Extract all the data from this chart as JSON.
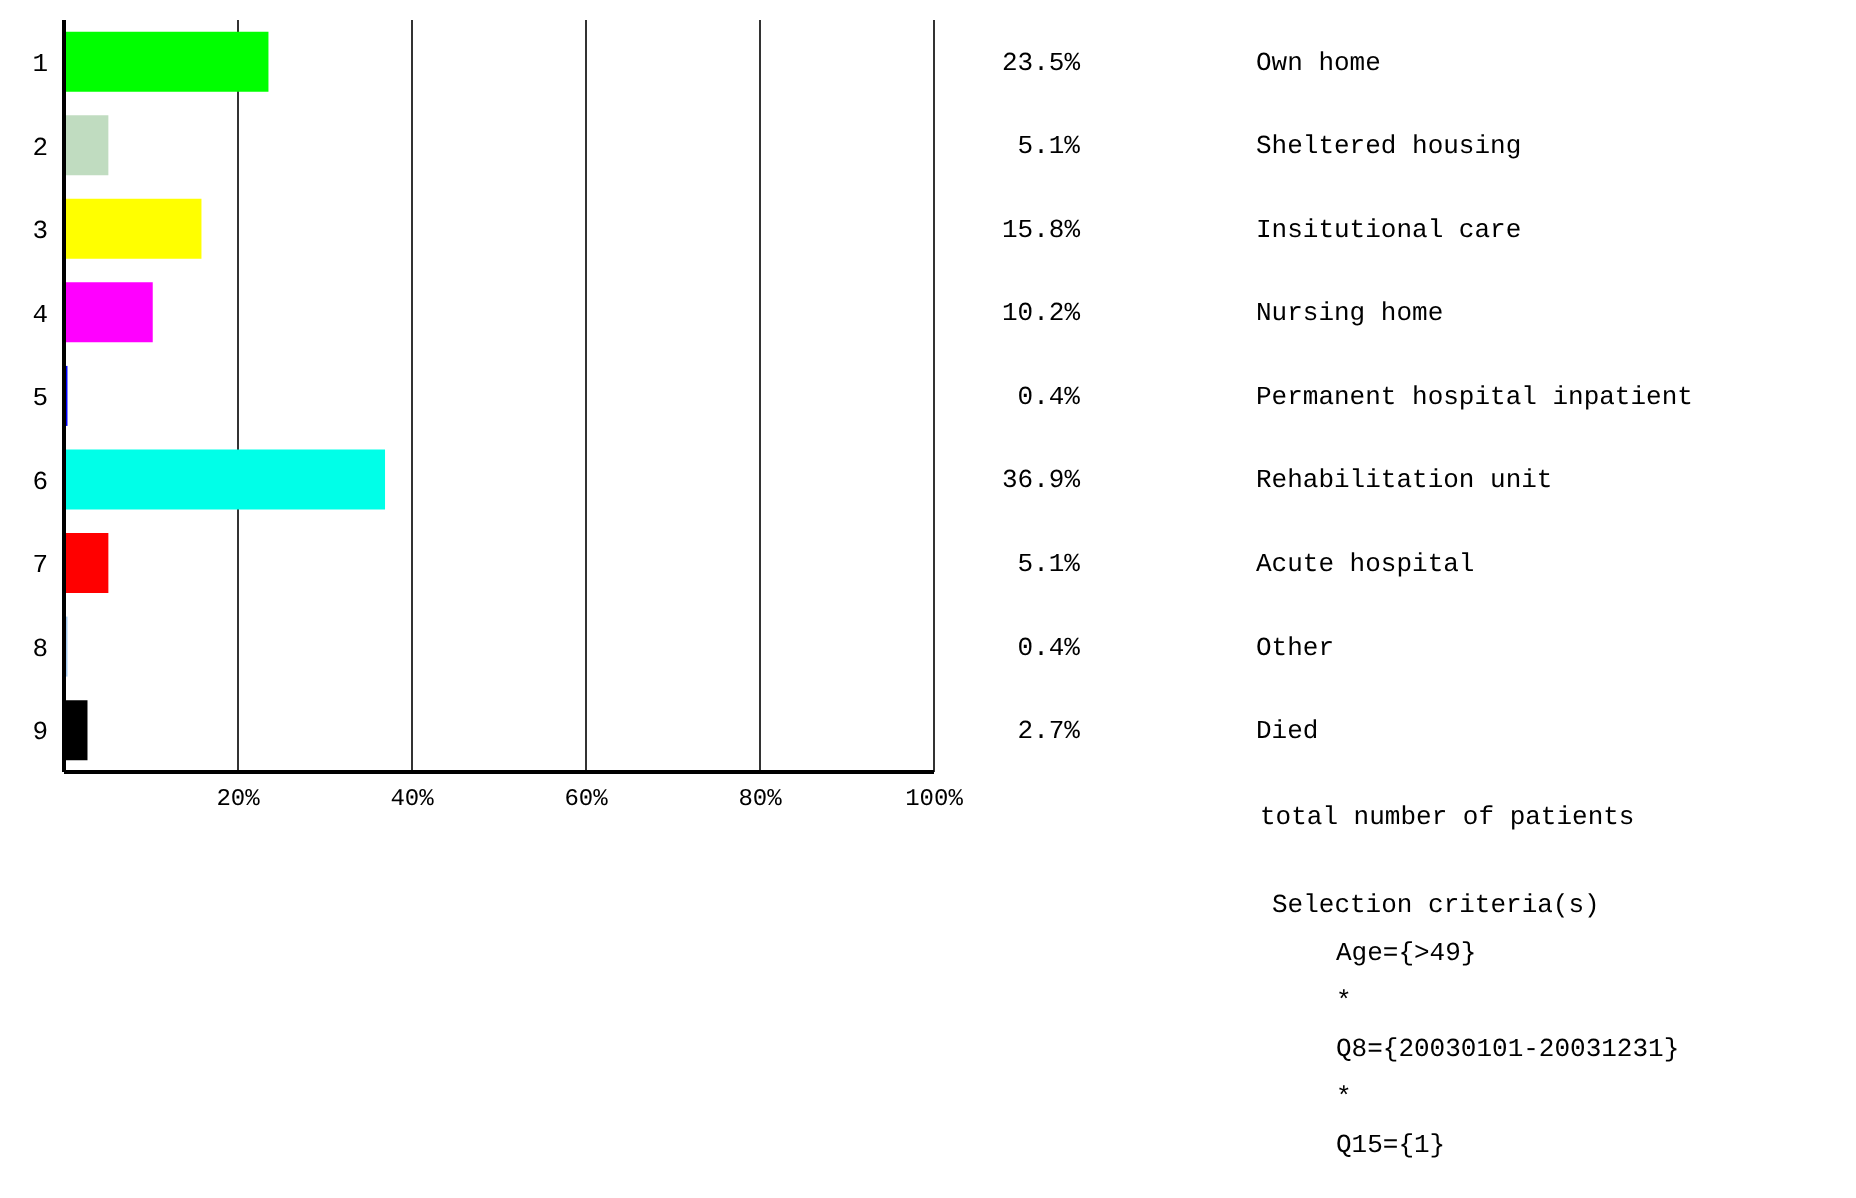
{
  "chart_data": {
    "type": "bar",
    "orientation": "horizontal",
    "categories": [
      "1",
      "2",
      "3",
      "4",
      "5",
      "6",
      "7",
      "8",
      "9"
    ],
    "values": [
      23.5,
      5.1,
      15.8,
      10.2,
      0.4,
      36.9,
      5.1,
      0.4,
      2.7
    ],
    "colors": [
      "#00ff00",
      "#c0dcc0",
      "#ffff00",
      "#ff00ff",
      "#0000ff",
      "#00ffe8",
      "#ff0000",
      "#a6caf0",
      "#000000"
    ],
    "value_labels": [
      "23.5%",
      "5.1%",
      "15.8%",
      "10.2%",
      "0.4%",
      "36.9%",
      "5.1%",
      "0.4%",
      "2.7%"
    ],
    "xlim": [
      0,
      100
    ],
    "xticks": [
      {
        "value": 0,
        "label": null
      },
      {
        "value": 20,
        "label": "20%"
      },
      {
        "value": 40,
        "label": "40%"
      },
      {
        "value": 60,
        "label": "60%"
      },
      {
        "value": 80,
        "label": "80%"
      },
      {
        "value": 100,
        "label": "100%"
      }
    ],
    "grid": "x",
    "legend": false,
    "annotations": [
      "Own home",
      "Sheltered housing",
      "Insitutional care",
      "Nursing home",
      "Permanent hospital inpatient",
      "Rehabilitation unit",
      "Acute hospital",
      "Other",
      "Died",
      "total number of patients",
      "Selection criteria(s)",
      "Age={>49}",
      "*",
      "Q8={20030101-20031231}",
      "*",
      "Q15={1}"
    ]
  }
}
